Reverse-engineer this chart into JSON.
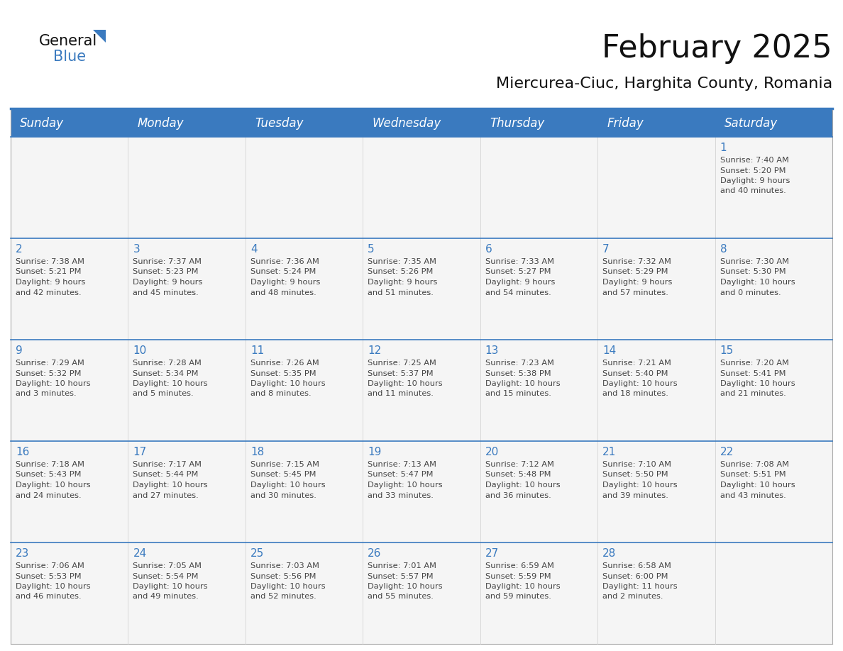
{
  "title": "February 2025",
  "subtitle": "Miercurea-Ciuc, Harghita County, Romania",
  "header_color": "#3a7abf",
  "header_text_color": "#ffffff",
  "cell_bg_color": "#f5f5f5",
  "day_number_color": "#3a7abf",
  "text_color": "#444444",
  "separator_color": "#3a7abf",
  "days_of_week": [
    "Sunday",
    "Monday",
    "Tuesday",
    "Wednesday",
    "Thursday",
    "Friday",
    "Saturday"
  ],
  "calendar": [
    [
      null,
      null,
      null,
      null,
      null,
      null,
      1
    ],
    [
      2,
      3,
      4,
      5,
      6,
      7,
      8
    ],
    [
      9,
      10,
      11,
      12,
      13,
      14,
      15
    ],
    [
      16,
      17,
      18,
      19,
      20,
      21,
      22
    ],
    [
      23,
      24,
      25,
      26,
      27,
      28,
      null
    ]
  ],
  "sun_data": {
    "1": {
      "sunrise": "7:40 AM",
      "sunset": "5:20 PM",
      "daylight": "9 hours and 40 minutes."
    },
    "2": {
      "sunrise": "7:38 AM",
      "sunset": "5:21 PM",
      "daylight": "9 hours and 42 minutes."
    },
    "3": {
      "sunrise": "7:37 AM",
      "sunset": "5:23 PM",
      "daylight": "9 hours and 45 minutes."
    },
    "4": {
      "sunrise": "7:36 AM",
      "sunset": "5:24 PM",
      "daylight": "9 hours and 48 minutes."
    },
    "5": {
      "sunrise": "7:35 AM",
      "sunset": "5:26 PM",
      "daylight": "9 hours and 51 minutes."
    },
    "6": {
      "sunrise": "7:33 AM",
      "sunset": "5:27 PM",
      "daylight": "9 hours and 54 minutes."
    },
    "7": {
      "sunrise": "7:32 AM",
      "sunset": "5:29 PM",
      "daylight": "9 hours and 57 minutes."
    },
    "8": {
      "sunrise": "7:30 AM",
      "sunset": "5:30 PM",
      "daylight": "10 hours and 0 minutes."
    },
    "9": {
      "sunrise": "7:29 AM",
      "sunset": "5:32 PM",
      "daylight": "10 hours and 3 minutes."
    },
    "10": {
      "sunrise": "7:28 AM",
      "sunset": "5:34 PM",
      "daylight": "10 hours and 5 minutes."
    },
    "11": {
      "sunrise": "7:26 AM",
      "sunset": "5:35 PM",
      "daylight": "10 hours and 8 minutes."
    },
    "12": {
      "sunrise": "7:25 AM",
      "sunset": "5:37 PM",
      "daylight": "10 hours and 11 minutes."
    },
    "13": {
      "sunrise": "7:23 AM",
      "sunset": "5:38 PM",
      "daylight": "10 hours and 15 minutes."
    },
    "14": {
      "sunrise": "7:21 AM",
      "sunset": "5:40 PM",
      "daylight": "10 hours and 18 minutes."
    },
    "15": {
      "sunrise": "7:20 AM",
      "sunset": "5:41 PM",
      "daylight": "10 hours and 21 minutes."
    },
    "16": {
      "sunrise": "7:18 AM",
      "sunset": "5:43 PM",
      "daylight": "10 hours and 24 minutes."
    },
    "17": {
      "sunrise": "7:17 AM",
      "sunset": "5:44 PM",
      "daylight": "10 hours and 27 minutes."
    },
    "18": {
      "sunrise": "7:15 AM",
      "sunset": "5:45 PM",
      "daylight": "10 hours and 30 minutes."
    },
    "19": {
      "sunrise": "7:13 AM",
      "sunset": "5:47 PM",
      "daylight": "10 hours and 33 minutes."
    },
    "20": {
      "sunrise": "7:12 AM",
      "sunset": "5:48 PM",
      "daylight": "10 hours and 36 minutes."
    },
    "21": {
      "sunrise": "7:10 AM",
      "sunset": "5:50 PM",
      "daylight": "10 hours and 39 minutes."
    },
    "22": {
      "sunrise": "7:08 AM",
      "sunset": "5:51 PM",
      "daylight": "10 hours and 43 minutes."
    },
    "23": {
      "sunrise": "7:06 AM",
      "sunset": "5:53 PM",
      "daylight": "10 hours and 46 minutes."
    },
    "24": {
      "sunrise": "7:05 AM",
      "sunset": "5:54 PM",
      "daylight": "10 hours and 49 minutes."
    },
    "25": {
      "sunrise": "7:03 AM",
      "sunset": "5:56 PM",
      "daylight": "10 hours and 52 minutes."
    },
    "26": {
      "sunrise": "7:01 AM",
      "sunset": "5:57 PM",
      "daylight": "10 hours and 55 minutes."
    },
    "27": {
      "sunrise": "6:59 AM",
      "sunset": "5:59 PM",
      "daylight": "10 hours and 59 minutes."
    },
    "28": {
      "sunrise": "6:58 AM",
      "sunset": "6:00 PM",
      "daylight": "11 hours and 2 minutes."
    }
  },
  "title_fontsize": 32,
  "subtitle_fontsize": 16,
  "header_fontsize": 12,
  "day_num_fontsize": 11,
  "cell_text_fontsize": 8.2,
  "logo_general_fontsize": 15,
  "logo_blue_fontsize": 15
}
